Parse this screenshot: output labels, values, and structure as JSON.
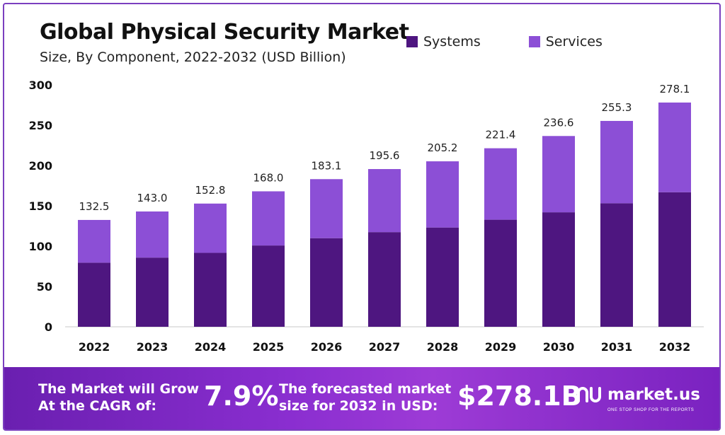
{
  "header": {
    "title": "Global Physical Security Market",
    "subtitle": "Size, By Component, 2022-2032 (USD Billion)"
  },
  "legend": [
    {
      "label": "Systems",
      "color": "#4e1680"
    },
    {
      "label": "Services",
      "color": "#8c4fd6"
    }
  ],
  "chart_data": {
    "type": "bar",
    "stacked": true,
    "categories": [
      "2022",
      "2023",
      "2024",
      "2025",
      "2026",
      "2027",
      "2028",
      "2029",
      "2030",
      "2031",
      "2032"
    ],
    "series": [
      {
        "name": "Systems",
        "values": [
          79.5,
          85.8,
          91.7,
          100.8,
          109.9,
          117.4,
          123.1,
          132.8,
          142.0,
          153.2,
          166.9
        ]
      },
      {
        "name": "Services",
        "values": [
          53.0,
          57.2,
          61.1,
          67.2,
          73.2,
          78.2,
          82.1,
          88.6,
          94.6,
          102.1,
          111.2
        ]
      }
    ],
    "totals": [
      "132.5",
      "143.0",
      "152.8",
      "168.0",
      "183.1",
      "195.6",
      "205.2",
      "221.4",
      "236.6",
      "255.3",
      "278.1"
    ],
    "yticks": [
      0,
      50,
      100,
      150,
      200,
      250,
      300
    ],
    "ylim": [
      0,
      300
    ],
    "grid": false,
    "legend_position": "top-right"
  },
  "banner": {
    "grow_text_line1": "The Market will Grow",
    "grow_text_line2": "At the CAGR of:",
    "cagr": "7.9%",
    "forecast_line1": "The forecasted market",
    "forecast_line2": "size for 2032 in USD:",
    "forecast_value": "$278.1B",
    "logo_name": "market.us",
    "logo_tagline": "ONE STOP SHOP FOR THE REPORTS"
  }
}
